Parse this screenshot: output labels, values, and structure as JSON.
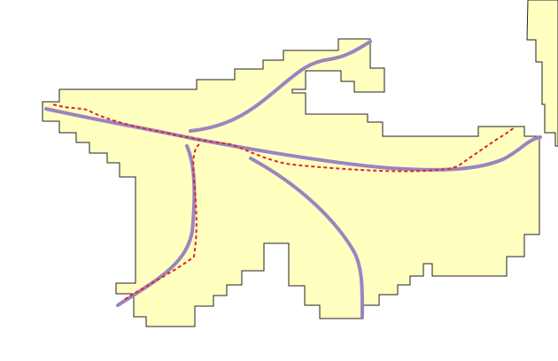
{
  "map": {
    "colors": {
      "background": "#ffffff",
      "region_fill": "#ffffc0",
      "region_stroke": "#222222",
      "route_line": "#9a84c0",
      "dashed_line": "#e0262b"
    },
    "layers": [
      "region-polygon",
      "neighbor-region-polygon",
      "route-lines",
      "dashed-boundary-lines"
    ]
  }
}
